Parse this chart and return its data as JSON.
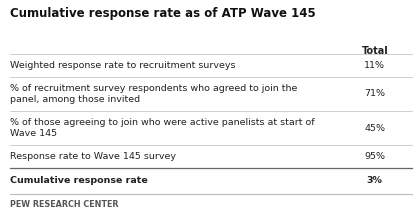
{
  "title": "Cumulative response rate as of ATP Wave 145",
  "col_header": "Total",
  "rows": [
    {
      "label": "Weighted response rate to recruitment surveys",
      "value": "11%",
      "bold": false
    },
    {
      "label": "% of recruitment survey respondents who agreed to join the\npanel, among those invited",
      "value": "71%",
      "bold": false
    },
    {
      "label": "% of those agreeing to join who were active panelists at start of\nWave 145",
      "value": "45%",
      "bold": false
    },
    {
      "label": "Response rate to Wave 145 survey",
      "value": "95%",
      "bold": false
    },
    {
      "label": "Cumulative response rate",
      "value": "3%",
      "bold": true
    }
  ],
  "footer": "PEW RESEARCH CENTER",
  "bg_color": "#ffffff",
  "text_color": "#222222",
  "header_color": "#222222",
  "footer_color": "#555555",
  "separator_color": "#bbbbbb",
  "bold_separator_color": "#666666",
  "title_color": "#111111"
}
